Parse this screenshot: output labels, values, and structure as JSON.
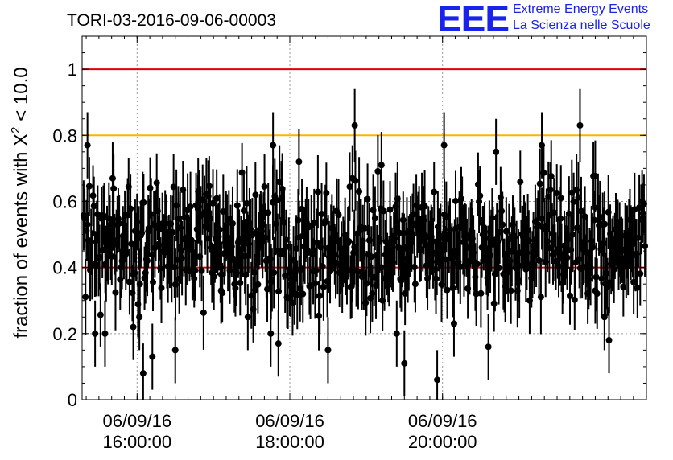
{
  "logo": {
    "letters": "EEE",
    "line1": "Extreme Energy Events",
    "line2": "La Scienza nelle Scuole",
    "color": "#1a22ee"
  },
  "chart_data": {
    "type": "scatter",
    "title": "TORI-03-2016-09-06-00003",
    "ylabel_prefix": "fraction of events with X",
    "ylabel_sup": "2",
    "ylabel_suffix": " < 10.0",
    "xlabel": "",
    "xlim_hours": [
      15.28,
      22.67
    ],
    "ylim": [
      0,
      1.1
    ],
    "yticks": [
      {
        "value": 0,
        "label": "0"
      },
      {
        "value": 0.2,
        "label": "0.2"
      },
      {
        "value": 0.4,
        "label": "0.4"
      },
      {
        "value": 0.6,
        "label": "0.6"
      },
      {
        "value": 0.8,
        "label": "0.8"
      },
      {
        "value": 1,
        "label": "1"
      }
    ],
    "xticks": [
      {
        "value": 16,
        "date": "06/09/16",
        "time": "16:00:00"
      },
      {
        "value": 18,
        "date": "06/09/16",
        "time": "18:00:00"
      },
      {
        "value": 20,
        "date": "06/09/16",
        "time": "20:00:00"
      }
    ],
    "grid": true,
    "reference_lines": [
      {
        "value": 1.0,
        "color": "#e00000"
      },
      {
        "value": 0.8,
        "color": "#ffb400"
      },
      {
        "value": 0.4,
        "color": "#e00000"
      }
    ],
    "series": [
      {
        "name": "fraction",
        "n_points": 600,
        "typical_value": 0.47,
        "typical_error": 0.1,
        "points": [
          {
            "x": 15.35,
            "y": 0.77,
            "err": 0.1
          },
          {
            "x": 15.45,
            "y": 0.2,
            "err": 0.1
          },
          {
            "x": 15.58,
            "y": 0.2,
            "err": 0.1
          },
          {
            "x": 15.68,
            "y": 0.67,
            "err": 0.11
          },
          {
            "x": 15.95,
            "y": 0.22,
            "err": 0.1
          },
          {
            "x": 16.03,
            "y": 0.25,
            "err": 0.1
          },
          {
            "x": 16.08,
            "y": 0.08,
            "err": 0.09
          },
          {
            "x": 16.2,
            "y": 0.13,
            "err": 0.1
          },
          {
            "x": 16.5,
            "y": 0.15,
            "err": 0.1
          },
          {
            "x": 16.8,
            "y": 0.63,
            "err": 0.1
          },
          {
            "x": 17.1,
            "y": 0.33,
            "err": 0.1
          },
          {
            "x": 17.45,
            "y": 0.25,
            "err": 0.1
          },
          {
            "x": 17.55,
            "y": 0.62,
            "err": 0.1
          },
          {
            "x": 17.78,
            "y": 0.77,
            "err": 0.1
          },
          {
            "x": 17.75,
            "y": 0.2,
            "err": 0.1
          },
          {
            "x": 17.85,
            "y": 0.17,
            "err": 0.1
          },
          {
            "x": 18.12,
            "y": 0.72,
            "err": 0.1
          },
          {
            "x": 18.5,
            "y": 0.15,
            "err": 0.1
          },
          {
            "x": 18.85,
            "y": 0.83,
            "err": 0.11
          },
          {
            "x": 18.82,
            "y": 0.67,
            "err": 0.1
          },
          {
            "x": 19.2,
            "y": 0.71,
            "err": 0.1
          },
          {
            "x": 19.4,
            "y": 0.2,
            "err": 0.1
          },
          {
            "x": 19.5,
            "y": 0.11,
            "err": 0.1
          },
          {
            "x": 19.93,
            "y": 0.06,
            "err": 0.09
          },
          {
            "x": 20.02,
            "y": 0.77,
            "err": 0.1
          },
          {
            "x": 20.15,
            "y": 0.23,
            "err": 0.1
          },
          {
            "x": 20.6,
            "y": 0.16,
            "err": 0.1
          },
          {
            "x": 20.7,
            "y": 0.75,
            "err": 0.1
          },
          {
            "x": 21.3,
            "y": 0.77,
            "err": 0.1
          },
          {
            "x": 21.55,
            "y": 0.61,
            "err": 0.1
          },
          {
            "x": 21.8,
            "y": 0.83,
            "err": 0.11
          },
          {
            "x": 22.0,
            "y": 0.33,
            "err": 0.1
          },
          {
            "x": 22.12,
            "y": 0.25,
            "err": 0.1
          },
          {
            "x": 22.18,
            "y": 0.18,
            "err": 0.1
          }
        ]
      }
    ]
  }
}
